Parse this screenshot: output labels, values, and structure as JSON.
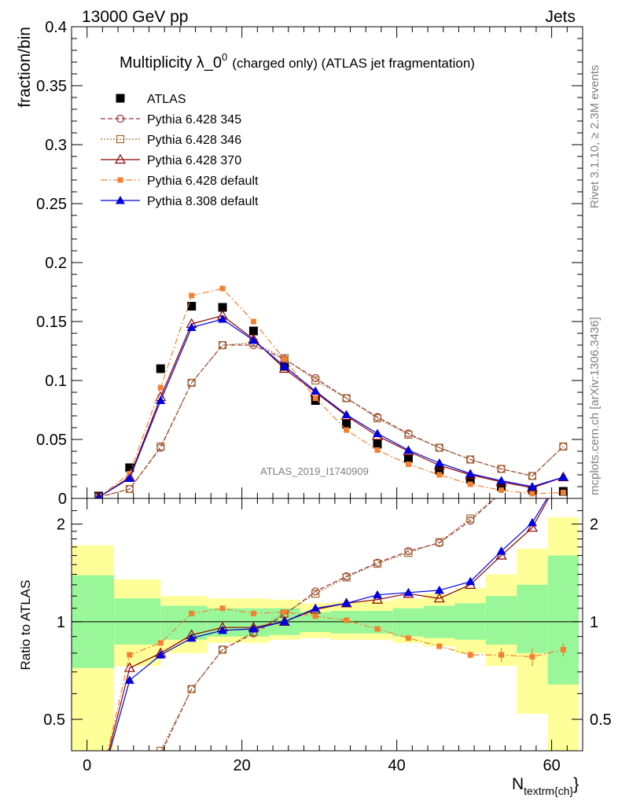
{
  "header": {
    "left": "13000 GeV pp",
    "right": "Jets",
    "title_main": "Multiplicity λ_0",
    "title_sup": "0",
    "title_rest": "(charged only) (ATLAS jet fragmentation)",
    "side_top": "Rivet 3.1.10, ≥ 2.3M events",
    "side_bottom": "mcplots.cern.ch [arXiv:1306.3436]",
    "watermark": "ATLAS_2019_I1740909"
  },
  "axes": {
    "ylabel_main": "fraction/bin",
    "ylabel_ratio": "Ratio to ATLAS",
    "xlabel_main": "N",
    "xlabel_sub": "textrm{ch}",
    "xlabel_close": "}",
    "main_ticks": [
      "0",
      "0.05",
      "0.1",
      "0.15",
      "0.2",
      "0.25",
      "0.3",
      "0.35",
      "0.4"
    ],
    "ratio_ticks": [
      "0.5",
      "1",
      "2"
    ],
    "x_ticks": [
      "0",
      "20",
      "40",
      "60"
    ]
  },
  "chart_data": {
    "type": "line",
    "x": [
      1.5,
      5.5,
      9.5,
      13.5,
      17.5,
      21.5,
      25.5,
      29.5,
      33.5,
      37.5,
      41.5,
      45.5,
      49.5,
      53.5,
      57.5,
      61.5
    ],
    "xlim": [
      -2,
      64
    ],
    "ylim": [
      0,
      0.4
    ],
    "ratio_ylim": [
      0.4,
      2.4
    ],
    "ratio_log": true,
    "series": [
      {
        "name": "ATLAS",
        "color": "#000000",
        "marker": "square-filled",
        "dash": "none",
        "values": [
          0.002,
          0.026,
          0.11,
          0.163,
          0.162,
          0.142,
          0.112,
          0.083,
          0.063,
          0.046,
          0.034,
          0.024,
          0.016,
          0.01,
          0.007,
          0.006
        ]
      },
      {
        "name": "Pythia 6.428 345",
        "color": "#a0303a",
        "marker": "circle-open",
        "dash": "6,3",
        "values": [
          0.001,
          0.008,
          0.043,
          0.098,
          0.13,
          0.13,
          0.118,
          0.102,
          0.085,
          0.069,
          0.055,
          0.043,
          0.033,
          0.025,
          0.019,
          0.044
        ]
      },
      {
        "name": "Pythia 6.428 346",
        "color": "#a06b2c",
        "marker": "square-open",
        "dash": "2,2",
        "values": [
          0.001,
          0.008,
          0.044,
          0.098,
          0.13,
          0.132,
          0.119,
          0.1,
          0.085,
          0.068,
          0.054,
          0.043,
          0.033,
          0.025,
          0.019,
          0.044
        ]
      },
      {
        "name": "Pythia 6.428 370",
        "color": "#8b0000",
        "marker": "triangle-open",
        "dash": "none",
        "values": [
          0.001,
          0.018,
          0.086,
          0.148,
          0.155,
          0.135,
          0.11,
          0.09,
          0.07,
          0.053,
          0.04,
          0.028,
          0.02,
          0.014,
          0.009,
          0.018
        ]
      },
      {
        "name": "Pythia 6.428 default",
        "color": "#f58030",
        "marker": "square-small",
        "dash": "8,3,2,3",
        "values": [
          0.001,
          0.021,
          0.094,
          0.172,
          0.178,
          0.15,
          0.118,
          0.085,
          0.058,
          0.041,
          0.029,
          0.02,
          0.012,
          0.007,
          0.004,
          0.005
        ]
      },
      {
        "name": "Pythia 8.308 default",
        "color": "#0000e0",
        "marker": "triangle-filled",
        "dash": "none",
        "values": [
          0.001,
          0.017,
          0.083,
          0.145,
          0.152,
          0.134,
          0.112,
          0.091,
          0.071,
          0.055,
          0.041,
          0.03,
          0.021,
          0.015,
          0.01,
          0.018
        ]
      }
    ],
    "ratios": {
      "Pythia 6.428 345": [
        0.3,
        0.32,
        0.39,
        0.62,
        0.82,
        0.92,
        1.05,
        1.24,
        1.38,
        1.52,
        1.65,
        1.75,
        2.05,
        2.5,
        2.7,
        7.3
      ],
      "Pythia 6.428 346": [
        0.3,
        0.32,
        0.4,
        0.62,
        0.82,
        0.93,
        1.06,
        1.22,
        1.37,
        1.51,
        1.63,
        1.76,
        2.08,
        2.5,
        2.7,
        7.3
      ],
      "Pythia 6.428 370": [
        0.3,
        0.72,
        0.8,
        0.91,
        0.96,
        0.96,
        1.0,
        1.09,
        1.14,
        1.17,
        1.22,
        1.18,
        1.3,
        1.6,
        1.95,
        2.9
      ],
      "Pythia 6.428 default": [
        0.3,
        0.79,
        0.86,
        1.06,
        1.1,
        1.06,
        1.07,
        1.04,
        1.01,
        0.95,
        0.89,
        0.84,
        0.79,
        0.79,
        0.78,
        0.82
      ],
      "Pythia 8.308 default": [
        0.3,
        0.66,
        0.79,
        0.89,
        0.94,
        0.95,
        1.0,
        1.1,
        1.14,
        1.21,
        1.23,
        1.25,
        1.33,
        1.65,
        2.02,
        2.9
      ]
    },
    "ratio_errors": {
      "Pythia 6.428 default": [
        0,
        0,
        0,
        0,
        0,
        0,
        0,
        0,
        0,
        0,
        0,
        0,
        0.02,
        0.04,
        0.05,
        0.04
      ],
      "Pythia 8.308 default": [
        0,
        0,
        0,
        0,
        0,
        0,
        0,
        0,
        0,
        0,
        0,
        0,
        0,
        0.03,
        0.04,
        0.05
      ]
    },
    "bands": {
      "edges": [
        -2,
        3.5,
        9.5,
        15.5,
        23.5,
        27.5,
        31.5,
        35.5,
        39.5,
        43.5,
        47.5,
        51.5,
        55.5,
        59.5,
        63.5
      ],
      "stat_lo": [
        0.72,
        0.85,
        0.88,
        0.9,
        0.91,
        0.93,
        0.92,
        0.92,
        0.9,
        0.89,
        0.88,
        0.85,
        0.8,
        0.64,
        0.62
      ],
      "stat_hi": [
        1.39,
        1.18,
        1.12,
        1.1,
        1.1,
        1.07,
        1.08,
        1.08,
        1.1,
        1.12,
        1.14,
        1.2,
        1.3,
        1.6,
        1.68
      ],
      "syst_lo": [
        0.3,
        0.73,
        0.8,
        0.86,
        0.88,
        0.89,
        0.88,
        0.88,
        0.86,
        0.84,
        0.8,
        0.73,
        0.52,
        0.4,
        0.38
      ],
      "syst_hi": [
        1.72,
        1.35,
        1.2,
        1.18,
        1.17,
        1.14,
        1.15,
        1.16,
        1.18,
        1.22,
        1.27,
        1.4,
        1.68,
        2.1,
        2.15
      ]
    }
  },
  "colors": {
    "stat_band": "#99f799",
    "syst_band": "#ffff99",
    "axis": "#000000"
  }
}
